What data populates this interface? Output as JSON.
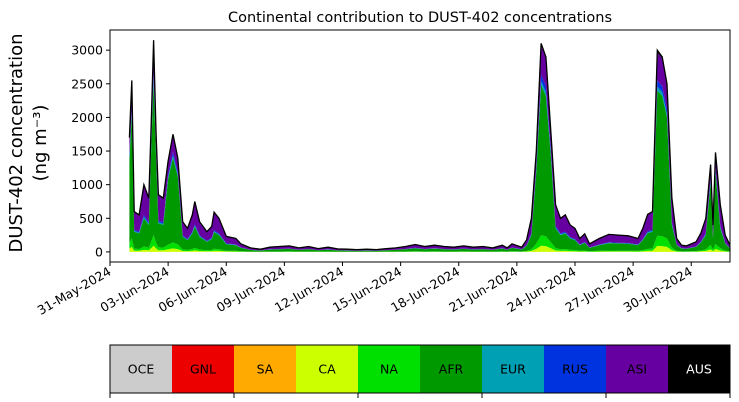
{
  "chart_data": {
    "type": "area",
    "title": "Continental contribution to DUST-402 concentrations",
    "ylabel_line1": "DUST-402 concentration",
    "ylabel_line2": "(ng m⁻³)",
    "xlabel": "",
    "ylim": [
      -150,
      3300
    ],
    "xlim": [
      "2024-05-31",
      "2024-07-02"
    ],
    "grid": false,
    "stacked": true,
    "y_ticks": [
      0,
      500,
      1000,
      1500,
      2000,
      2500,
      3000
    ],
    "x_tick_labels": [
      "31-May-2024",
      "03-Jun-2024",
      "06-Jun-2024",
      "09-Jun-2024",
      "12-Jun-2024",
      "15-Jun-2024",
      "18-Jun-2024",
      "21-Jun-2024",
      "24-Jun-2024",
      "27-Jun-2024",
      "30-Jun-2024"
    ],
    "total": [
      [
        "2024-06-01 00:00",
        1700
      ],
      [
        "2024-06-01 03:00",
        2550
      ],
      [
        "2024-06-01 06:00",
        600
      ],
      [
        "2024-06-01 12:00",
        550
      ],
      [
        "2024-06-01 18:00",
        1000
      ],
      [
        "2024-06-02 00:00",
        800
      ],
      [
        "2024-06-02 03:00",
        1900
      ],
      [
        "2024-06-02 06:00",
        3150
      ],
      [
        "2024-06-02 09:00",
        1800
      ],
      [
        "2024-06-02 12:00",
        850
      ],
      [
        "2024-06-02 18:00",
        800
      ],
      [
        "2024-06-03 00:00",
        1350
      ],
      [
        "2024-06-03 06:00",
        1750
      ],
      [
        "2024-06-03 12:00",
        1400
      ],
      [
        "2024-06-03 18:00",
        450
      ],
      [
        "2024-06-04 00:00",
        350
      ],
      [
        "2024-06-04 06:00",
        550
      ],
      [
        "2024-06-04 09:00",
        750
      ],
      [
        "2024-06-04 15:00",
        450
      ],
      [
        "2024-06-05 00:00",
        300
      ],
      [
        "2024-06-05 06:00",
        380
      ],
      [
        "2024-06-05 09:00",
        590
      ],
      [
        "2024-06-05 15:00",
        500
      ],
      [
        "2024-06-06 00:00",
        230
      ],
      [
        "2024-06-06 12:00",
        200
      ],
      [
        "2024-06-06 18:00",
        120
      ],
      [
        "2024-06-07 06:00",
        60
      ],
      [
        "2024-06-07 18:00",
        40
      ],
      [
        "2024-06-08 06:00",
        70
      ],
      [
        "2024-06-08 18:00",
        80
      ],
      [
        "2024-06-09 06:00",
        90
      ],
      [
        "2024-06-09 18:00",
        60
      ],
      [
        "2024-06-10 06:00",
        80
      ],
      [
        "2024-06-10 18:00",
        50
      ],
      [
        "2024-06-11 06:00",
        70
      ],
      [
        "2024-06-11 18:00",
        45
      ],
      [
        "2024-06-12 06:00",
        40
      ],
      [
        "2024-06-12 18:00",
        35
      ],
      [
        "2024-06-13 06:00",
        40
      ],
      [
        "2024-06-13 18:00",
        35
      ],
      [
        "2024-06-14 06:00",
        50
      ],
      [
        "2024-06-14 18:00",
        60
      ],
      [
        "2024-06-15 06:00",
        80
      ],
      [
        "2024-06-15 18:00",
        110
      ],
      [
        "2024-06-16 06:00",
        80
      ],
      [
        "2024-06-16 18:00",
        100
      ],
      [
        "2024-06-17 06:00",
        80
      ],
      [
        "2024-06-17 18:00",
        70
      ],
      [
        "2024-06-18 06:00",
        90
      ],
      [
        "2024-06-18 18:00",
        70
      ],
      [
        "2024-06-19 06:00",
        80
      ],
      [
        "2024-06-19 18:00",
        60
      ],
      [
        "2024-06-20 06:00",
        100
      ],
      [
        "2024-06-20 12:00",
        60
      ],
      [
        "2024-06-20 18:00",
        120
      ],
      [
        "2024-06-21 06:00",
        70
      ],
      [
        "2024-06-21 12:00",
        180
      ],
      [
        "2024-06-21 18:00",
        500
      ],
      [
        "2024-06-22 00:00",
        1500
      ],
      [
        "2024-06-22 06:00",
        3100
      ],
      [
        "2024-06-22 12:00",
        2900
      ],
      [
        "2024-06-22 18:00",
        1800
      ],
      [
        "2024-06-23 00:00",
        700
      ],
      [
        "2024-06-23 06:00",
        500
      ],
      [
        "2024-06-23 12:00",
        550
      ],
      [
        "2024-06-23 18:00",
        400
      ],
      [
        "2024-06-24 00:00",
        350
      ],
      [
        "2024-06-24 06:00",
        200
      ],
      [
        "2024-06-24 12:00",
        270
      ],
      [
        "2024-06-24 18:00",
        120
      ],
      [
        "2024-06-25 06:00",
        200
      ],
      [
        "2024-06-25 18:00",
        260
      ],
      [
        "2024-06-26 06:00",
        250
      ],
      [
        "2024-06-26 18:00",
        240
      ],
      [
        "2024-06-27 06:00",
        200
      ],
      [
        "2024-06-27 12:00",
        350
      ],
      [
        "2024-06-27 18:00",
        560
      ],
      [
        "2024-06-28 00:00",
        600
      ],
      [
        "2024-06-28 06:00",
        3000
      ],
      [
        "2024-06-28 12:00",
        2900
      ],
      [
        "2024-06-28 18:00",
        2500
      ],
      [
        "2024-06-29 00:00",
        800
      ],
      [
        "2024-06-29 06:00",
        200
      ],
      [
        "2024-06-29 12:00",
        100
      ],
      [
        "2024-06-29 18:00",
        90
      ],
      [
        "2024-06-30 06:00",
        150
      ],
      [
        "2024-06-30 12:00",
        280
      ],
      [
        "2024-06-30 18:00",
        500
      ],
      [
        "2024-07-01 00:00",
        1300
      ],
      [
        "2024-07-01 03:00",
        400
      ],
      [
        "2024-07-01 06:00",
        1480
      ],
      [
        "2024-07-01 12:00",
        700
      ],
      [
        "2024-07-01 18:00",
        250
      ],
      [
        "2024-07-02 00:00",
        100
      ],
      [
        "2024-07-02 03:00",
        90
      ]
    ],
    "legend": [
      {
        "code": "OCE",
        "color": "#cccccc",
        "text_color": "#000000"
      },
      {
        "code": "GNL",
        "color": "#ec0000",
        "text_color": "#000000"
      },
      {
        "code": "SA",
        "color": "#ffaa00",
        "text_color": "#000000"
      },
      {
        "code": "CA",
        "color": "#ccff00",
        "text_color": "#000000"
      },
      {
        "code": "NA",
        "color": "#00e000",
        "text_color": "#000000"
      },
      {
        "code": "AFR",
        "color": "#009900",
        "text_color": "#000000"
      },
      {
        "code": "EUR",
        "color": "#00a0b4",
        "text_color": "#000000"
      },
      {
        "code": "RUS",
        "color": "#0033e0",
        "text_color": "#000000"
      },
      {
        "code": "ASI",
        "color": "#6600a0",
        "text_color": "#000000"
      },
      {
        "code": "AUS",
        "color": "#000000",
        "text_color": "#ffffff"
      }
    ],
    "legend_placement": "bottom",
    "outline_color": "#000000"
  }
}
